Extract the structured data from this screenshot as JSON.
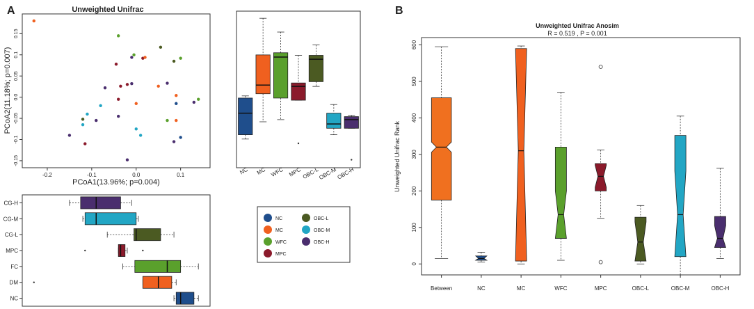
{
  "panel_labels": {
    "a": "A",
    "b": "B"
  },
  "colors": {
    "NC": "#1f4e8c",
    "MC": "#f0601f",
    "WFC": "#5aa02c",
    "MPC": "#8b1a2b",
    "OBC-L": "#4b5a22",
    "OBC-M": "#22a6c4",
    "OBC-H": "#4a2e6e",
    "Between": "#f0701f"
  },
  "legend": {
    "items": [
      {
        "label": "NC",
        "color": "#1f4e8c"
      },
      {
        "label": "OBC-L",
        "color": "#4b5a22"
      },
      {
        "label": "MC",
        "color": "#f0601f"
      },
      {
        "label": "OBC-M",
        "color": "#22a6c4"
      },
      {
        "label": "WFC",
        "color": "#5aa02c"
      },
      {
        "label": "OBC-H",
        "color": "#4a2e6e"
      },
      {
        "label": "MPC",
        "color": "#8b1a2b"
      }
    ]
  },
  "chart_data": [
    {
      "id": "pcoa",
      "type": "scatter",
      "title": "Unweighted Unifrac",
      "xlabel": "PCoA1(13.96%; p=0.004)",
      "ylabel": "PCoA2(11.18%; p=0.007)",
      "xlim": [
        -0.25,
        0.16
      ],
      "ylim": [
        -0.16,
        0.19
      ],
      "xticks": [
        -0.2,
        -0.1,
        0.0,
        0.1
      ],
      "xtick_labels": [
        "-0.2",
        "-0.1",
        "0.0",
        "0.1"
      ],
      "yticks": [
        -0.15,
        -0.1,
        -0.05,
        0.0,
        0.05,
        0.1,
        0.15
      ],
      "ytick_labels": [
        "-0.15",
        "-0.1",
        "-0.05",
        "0.0",
        "0.05",
        "0.1",
        "0.15"
      ],
      "points": [
        {
          "x": -0.23,
          "y": 0.18,
          "group": "MC"
        },
        {
          "x": -0.04,
          "y": 0.145,
          "group": "WFC"
        },
        {
          "x": -0.005,
          "y": 0.1,
          "group": "WFC"
        },
        {
          "x": 0.055,
          "y": 0.118,
          "group": "OBC-L"
        },
        {
          "x": 0.085,
          "y": 0.085,
          "group": "OBC-L"
        },
        {
          "x": 0.1,
          "y": 0.092,
          "group": "WFC"
        },
        {
          "x": -0.045,
          "y": 0.078,
          "group": "MPC"
        },
        {
          "x": -0.01,
          "y": 0.094,
          "group": "OBC-H"
        },
        {
          "x": 0.015,
          "y": 0.092,
          "group": "MPC"
        },
        {
          "x": 0.02,
          "y": 0.094,
          "group": "MC"
        },
        {
          "x": -0.07,
          "y": 0.022,
          "group": "OBC-H"
        },
        {
          "x": -0.035,
          "y": 0.026,
          "group": "MPC"
        },
        {
          "x": -0.02,
          "y": 0.03,
          "group": "MPC"
        },
        {
          "x": -0.01,
          "y": 0.032,
          "group": "OBC-H"
        },
        {
          "x": 0.05,
          "y": 0.026,
          "group": "MC"
        },
        {
          "x": 0.07,
          "y": 0.033,
          "group": "OBC-H"
        },
        {
          "x": 0.09,
          "y": 0.004,
          "group": "MC"
        },
        {
          "x": 0.14,
          "y": -0.005,
          "group": "WFC"
        },
        {
          "x": 0.13,
          "y": -0.012,
          "group": "OBC-H"
        },
        {
          "x": -0.04,
          "y": -0.005,
          "group": "MPC"
        },
        {
          "x": -0.08,
          "y": -0.02,
          "group": "OBC-M"
        },
        {
          "x": 0.0,
          "y": -0.015,
          "group": "MC"
        },
        {
          "x": 0.09,
          "y": -0.015,
          "group": "NC"
        },
        {
          "x": -0.11,
          "y": -0.04,
          "group": "OBC-M"
        },
        {
          "x": -0.12,
          "y": -0.052,
          "group": "OBC-L"
        },
        {
          "x": -0.09,
          "y": -0.055,
          "group": "OBC-H"
        },
        {
          "x": -0.04,
          "y": -0.045,
          "group": "OBC-H"
        },
        {
          "x": 0.07,
          "y": -0.055,
          "group": "WFC"
        },
        {
          "x": 0.09,
          "y": -0.055,
          "group": "MC"
        },
        {
          "x": -0.12,
          "y": -0.065,
          "group": "OBC-M"
        },
        {
          "x": 0.0,
          "y": -0.075,
          "group": "OBC-M"
        },
        {
          "x": -0.15,
          "y": -0.09,
          "group": "OBC-H"
        },
        {
          "x": 0.01,
          "y": -0.09,
          "group": "OBC-M"
        },
        {
          "x": 0.1,
          "y": -0.095,
          "group": "NC"
        },
        {
          "x": 0.085,
          "y": -0.105,
          "group": "OBC-H"
        },
        {
          "x": -0.115,
          "y": -0.11,
          "group": "MPC"
        },
        {
          "x": -0.02,
          "y": -0.148,
          "group": "OBC-H"
        }
      ]
    },
    {
      "id": "pc2-box",
      "type": "box",
      "orientation": "vertical",
      "categories": [
        "NC",
        "MC",
        "WFC",
        "MPC",
        "OBC-L",
        "OBC-M",
        "OBC-H"
      ],
      "ylim": [
        -0.16,
        0.19
      ],
      "boxes": [
        {
          "group": "NC",
          "min": -0.1,
          "q1": -0.09,
          "median": -0.04,
          "q3": -0.005,
          "max": 0.0
        },
        {
          "group": "MC",
          "min": -0.06,
          "q1": 0.005,
          "median": 0.025,
          "q3": 0.095,
          "max": 0.18
        },
        {
          "group": "WFC",
          "min": -0.055,
          "q1": -0.005,
          "median": 0.09,
          "q3": 0.1,
          "max": 0.148
        },
        {
          "group": "MPC",
          "min": -0.01,
          "q1": -0.01,
          "median": 0.022,
          "q3": 0.03,
          "max": 0.094,
          "outliers": [
            -0.11
          ]
        },
        {
          "group": "OBC-L",
          "min": 0.022,
          "q1": 0.033,
          "median": 0.085,
          "q3": 0.094,
          "max": 0.118
        },
        {
          "group": "OBC-M",
          "min": -0.09,
          "q1": -0.075,
          "median": -0.065,
          "q3": -0.04,
          "max": -0.02
        },
        {
          "group": "OBC-H",
          "min": -0.075,
          "q1": -0.075,
          "median": -0.055,
          "q3": -0.048,
          "max": -0.045,
          "outliers": [
            -0.148
          ]
        }
      ]
    },
    {
      "id": "pc1-box",
      "type": "box",
      "orientation": "horizontal",
      "categories": [
        "CG-H",
        "CG-M",
        "CG-L",
        "MPC",
        "FC",
        "DM",
        "NC"
      ],
      "xlim": [
        -0.25,
        0.16
      ],
      "boxes": [
        {
          "group": "CG-H",
          "color": "#4a2e6e",
          "min": -0.15,
          "q1": -0.125,
          "median": -0.09,
          "q3": -0.035,
          "max": -0.01
        },
        {
          "group": "CG-M",
          "color": "#22a6c4",
          "min": -0.12,
          "q1": -0.115,
          "median": -0.09,
          "q3": 0.0,
          "max": 0.005
        },
        {
          "group": "CG-L",
          "color": "#4b5a22",
          "min": -0.065,
          "q1": -0.005,
          "median": 0.0,
          "q3": 0.055,
          "max": 0.085
        },
        {
          "group": "MPC",
          "color": "#8b1a2b",
          "min": -0.04,
          "q1": -0.04,
          "median": -0.035,
          "q3": -0.025,
          "max": -0.02,
          "outliers": [
            -0.115,
            0.015
          ]
        },
        {
          "group": "FC",
          "color": "#5aa02c",
          "min": -0.03,
          "q1": -0.003,
          "median": 0.07,
          "q3": 0.1,
          "max": 0.14
        },
        {
          "group": "DM",
          "color": "#f0601f",
          "min": 0.015,
          "q1": 0.015,
          "median": 0.05,
          "q3": 0.08,
          "max": 0.09,
          "outliers": [
            -0.23
          ]
        },
        {
          "group": "NC",
          "color": "#1f4e8c",
          "min": 0.085,
          "q1": 0.09,
          "median": 0.1,
          "q3": 0.13,
          "max": 0.14
        }
      ]
    },
    {
      "id": "anosim",
      "type": "box",
      "notched": true,
      "title": "Unweighted Unifrac Anosim",
      "subtitle": "R =  0.519 ,  P =  0.001",
      "ylabel": "Unweighted Unifrac Rank",
      "ylim": [
        -30,
        620
      ],
      "yticks": [
        0,
        100,
        200,
        300,
        400,
        500,
        600
      ],
      "ytick_labels": [
        "0",
        "100",
        "200",
        "300",
        "400",
        "500",
        "600"
      ],
      "categories": [
        "Between",
        "NC",
        "MC",
        "WFC",
        "MPC",
        "OBC-L",
        "OBC-M",
        "OBC-H"
      ],
      "boxes": [
        {
          "group": "Between",
          "min": 15,
          "q1": 175,
          "median": 320,
          "q3": 455,
          "max": 595,
          "notch": 14
        },
        {
          "group": "NC",
          "min": 5,
          "q1": 10,
          "median": 15,
          "q3": 22,
          "max": 32,
          "notch": 9
        },
        {
          "group": "MC",
          "min": 0,
          "q1": 8,
          "median": 310,
          "q3": 590,
          "max": 597,
          "notch": 300
        },
        {
          "group": "WFC",
          "min": 10,
          "q1": 70,
          "median": 135,
          "q3": 320,
          "max": 470,
          "notch": 65
        },
        {
          "group": "MPC",
          "min": 125,
          "q1": 200,
          "median": 240,
          "q3": 275,
          "max": 312,
          "notch": 30,
          "outliers": [
            540,
            5
          ]
        },
        {
          "group": "OBC-L",
          "min": 0,
          "q1": 8,
          "median": 60,
          "q3": 128,
          "max": 160,
          "notch": 55
        },
        {
          "group": "OBC-M",
          "min": -30,
          "q1": 20,
          "median": 135,
          "q3": 352,
          "max": 405,
          "notch": 120
        },
        {
          "group": "OBC-H",
          "min": 15,
          "q1": 45,
          "median": 70,
          "q3": 130,
          "max": 262,
          "notch": 35
        }
      ]
    }
  ]
}
